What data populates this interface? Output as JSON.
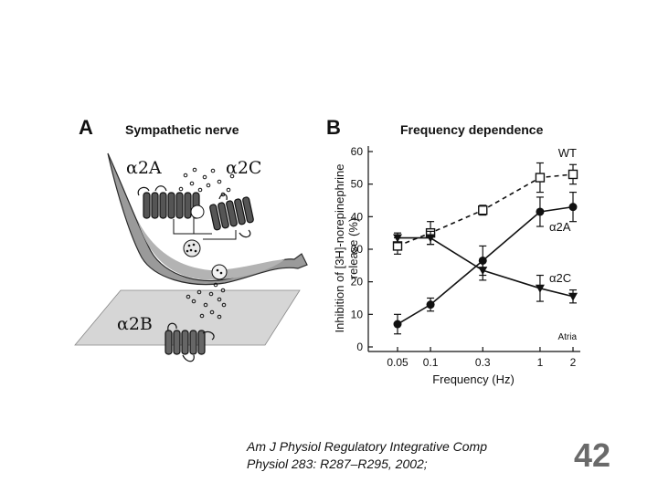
{
  "panel_a": {
    "letter": "A",
    "title": "Sympathetic nerve",
    "receptor_labels": [
      "α2A",
      "α2C",
      "α2B"
    ]
  },
  "chart_data": {
    "type": "line",
    "panel_letter": "B",
    "title": "Frequency dependence",
    "xlabel": "Frequency (Hz)",
    "ylabel_lines": [
      "Inhibition of [3H]-norepinephrine",
      "release (%)"
    ],
    "x_scale": "log",
    "x": [
      0.05,
      0.1,
      0.3,
      1,
      2
    ],
    "x_tick_labels": [
      "0.05",
      "0.1",
      "0.3",
      "1",
      "2"
    ],
    "ylim": [
      0,
      60
    ],
    "y_ticks": [
      0,
      10,
      20,
      30,
      40,
      50,
      60
    ],
    "annotation": "Atria",
    "series": [
      {
        "name": "WT",
        "line": "dashed",
        "marker": "open-square",
        "values": [
          31,
          35,
          42,
          52,
          53
        ],
        "errors": [
          2.5,
          3.5,
          1.5,
          4.5,
          3
        ]
      },
      {
        "name": "α2A",
        "line": "solid",
        "marker": "filled-circle",
        "values": [
          7,
          13,
          26.5,
          41.5,
          43
        ],
        "errors": [
          3,
          2,
          4.5,
          4.5,
          4.5
        ]
      },
      {
        "name": "α2C",
        "line": "solid",
        "marker": "filled-triangle-down",
        "values": [
          33.5,
          33.5,
          23.5,
          18,
          15.5
        ],
        "errors": [
          1.5,
          2,
          3,
          4,
          2
        ]
      }
    ]
  },
  "citation": {
    "line1": "Am J Physiol Regulatory Integrative Comp",
    "line2": "Physiol 283: R287–R295, 2002;"
  },
  "page_number": "42"
}
